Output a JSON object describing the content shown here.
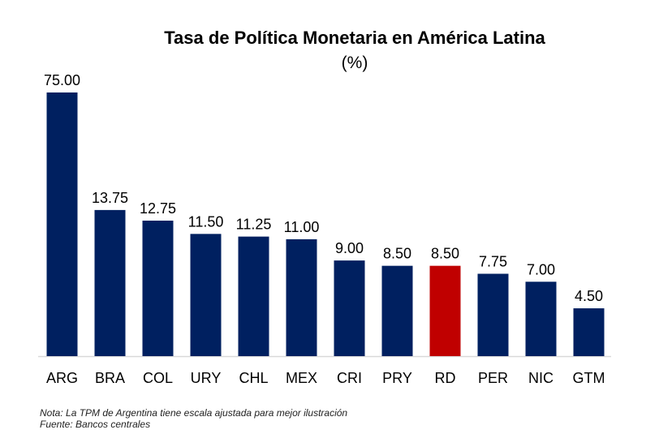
{
  "chart_data": {
    "type": "bar",
    "title": "Tasa de Política Monetaria en América Latina",
    "subtitle": "(%)",
    "categories": [
      "ARG",
      "BRA",
      "COL",
      "URY",
      "CHL",
      "MEX",
      "CRI",
      "PRY",
      "RD",
      "PER",
      "NIC",
      "GTM"
    ],
    "values": [
      75.0,
      13.75,
      12.75,
      11.5,
      11.25,
      11.0,
      9.0,
      8.5,
      8.5,
      7.75,
      7.0,
      4.5
    ],
    "value_labels": [
      "75.00",
      "13.75",
      "12.75",
      "11.50",
      "11.25",
      "11.00",
      "9.00",
      "8.50",
      "8.50",
      "7.75",
      "7.00",
      "4.50"
    ],
    "scale_note": "ARG bar is drawn on an adjusted (truncated) scale",
    "colors": {
      "default": "#002060",
      "highlight": "#C00000",
      "highlight_category": "RD"
    },
    "grid": false,
    "legend": "none"
  },
  "notes": {
    "line1": "Nota: La TPM de Argentina tiene escala ajustada para mejor ilustración",
    "line2": "Fuente: Bancos centrales"
  }
}
